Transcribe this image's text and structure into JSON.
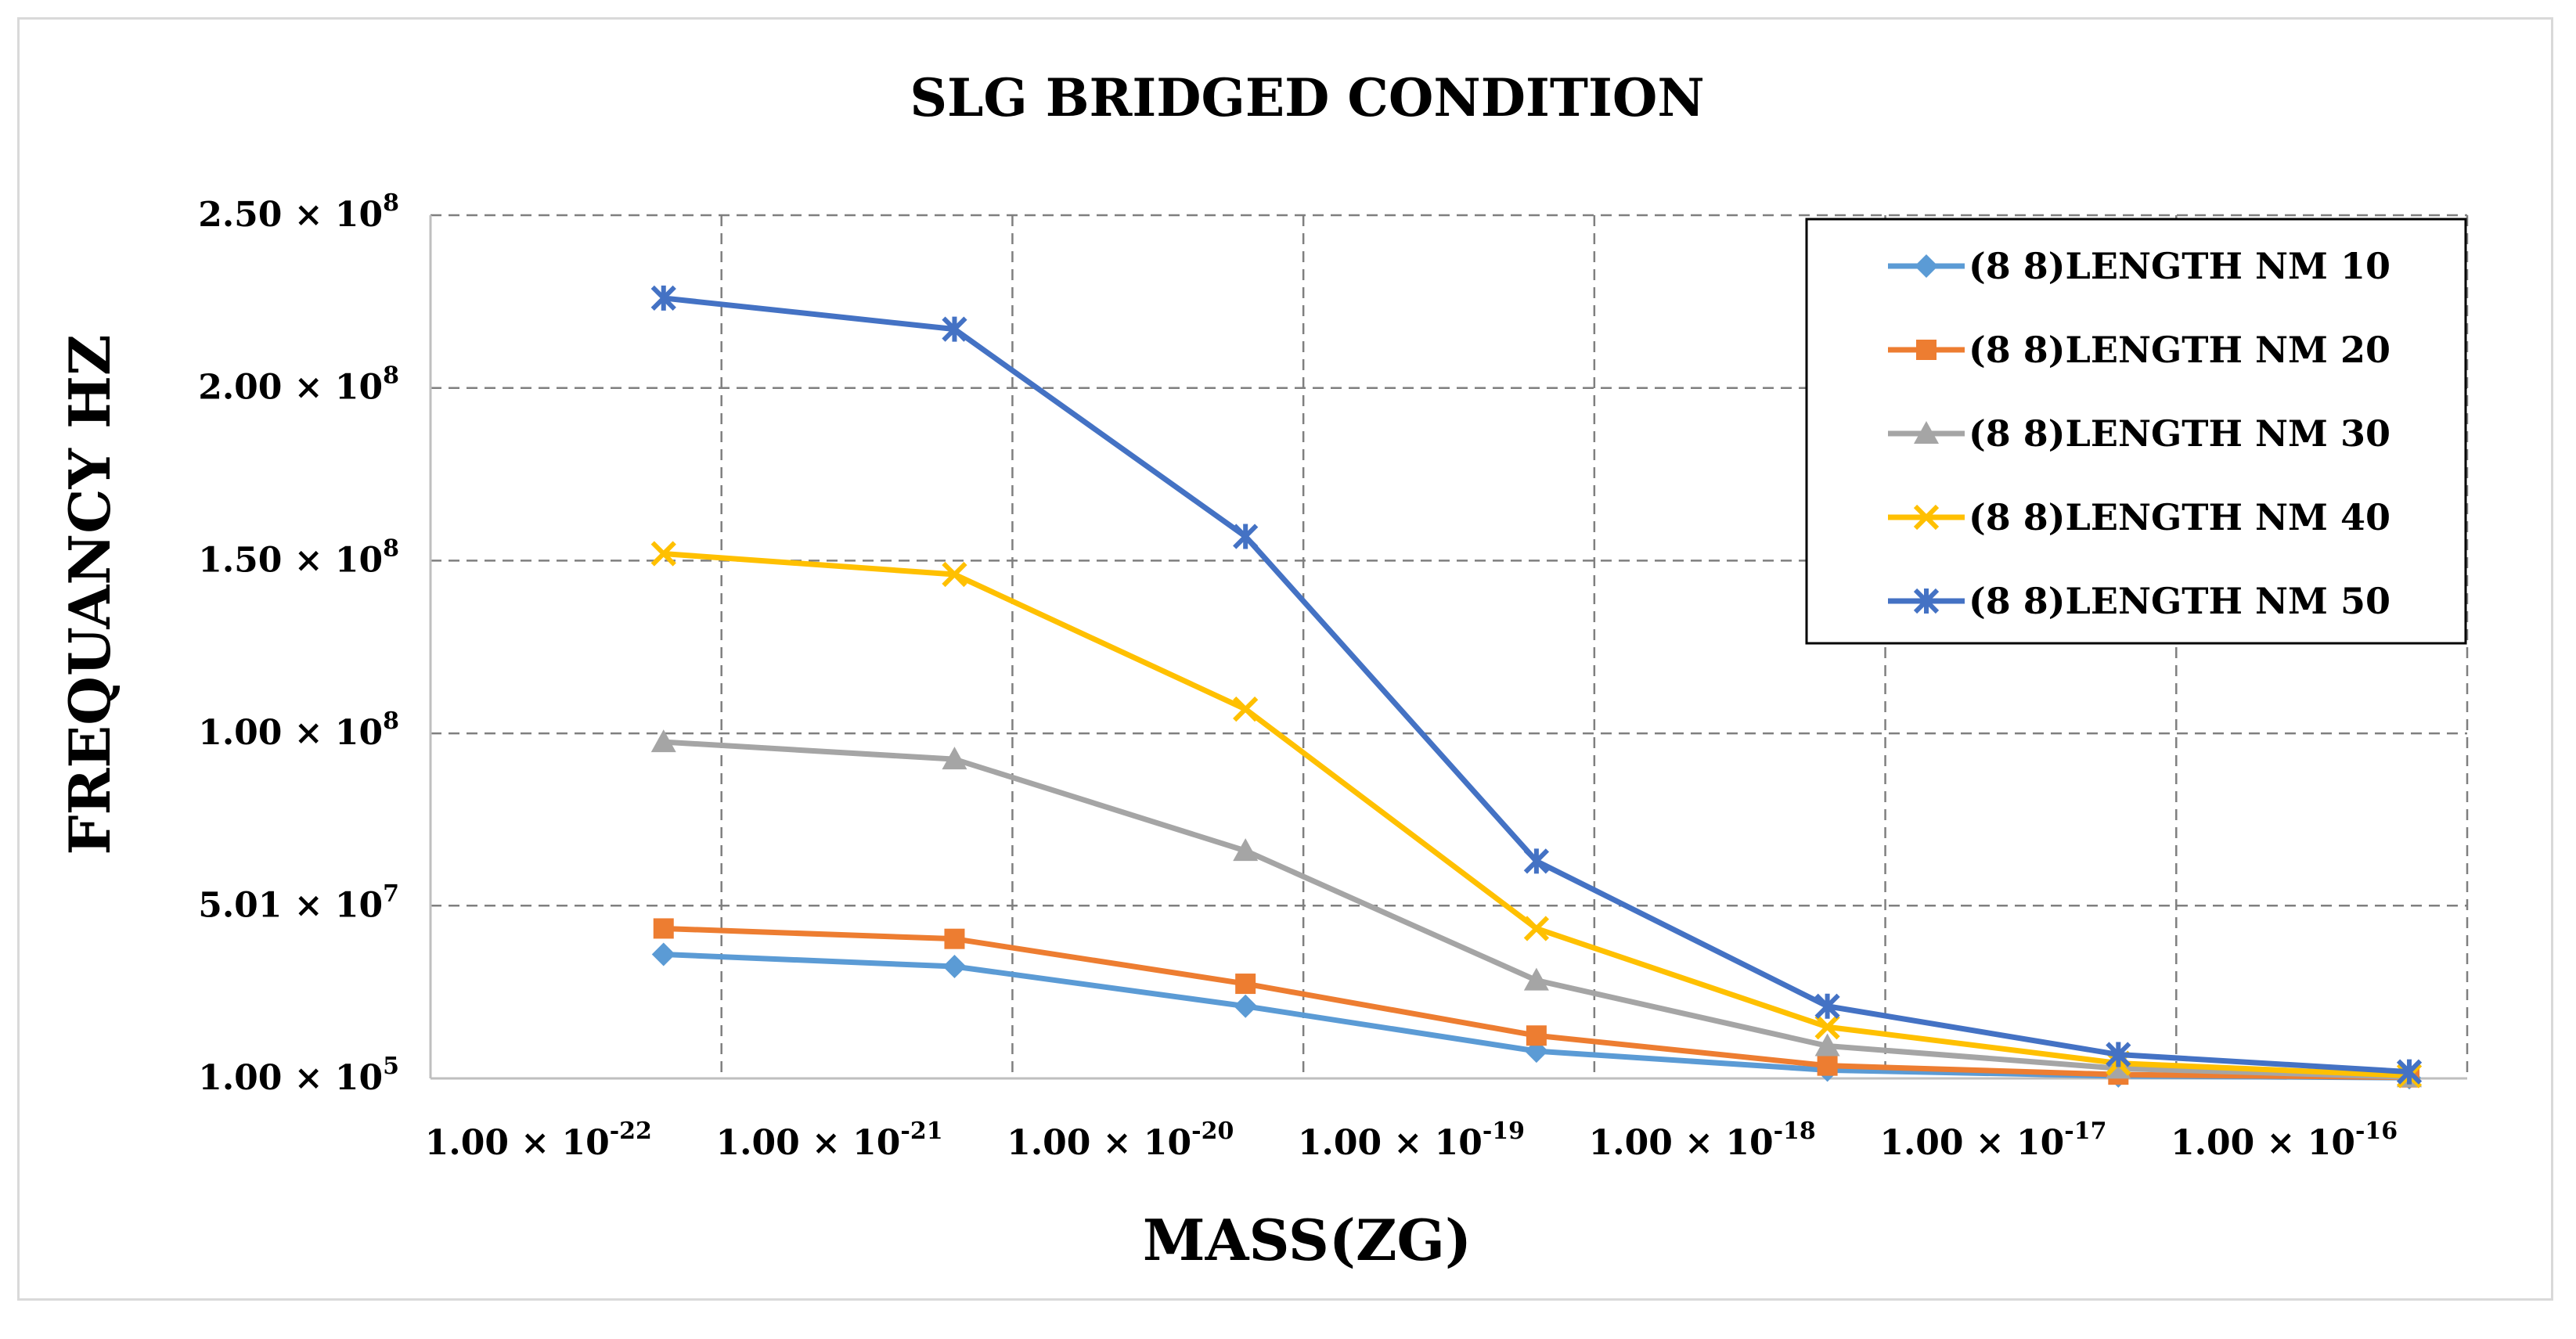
{
  "chart_data": {
    "type": "line",
    "title": "SLG BRIDGED CONDITION",
    "xlabel": "MASS(ZG)",
    "ylabel": "FREQUANCY HZ",
    "x_scale": "log",
    "x": [
      2e-22,
      2e-21,
      2e-20,
      2e-19,
      2e-18,
      2e-17,
      2e-16
    ],
    "xlim_log10": [
      -22.5,
      -15.5
    ],
    "x_ticks": [
      {
        "base": "1.00 × 10",
        "exp": "-22",
        "log10": -22
      },
      {
        "base": "1.00 × 10",
        "exp": "-21",
        "log10": -21
      },
      {
        "base": "1.00 × 10",
        "exp": "-20",
        "log10": -20
      },
      {
        "base": "1.00 × 10",
        "exp": "-19",
        "log10": -19
      },
      {
        "base": "1.00 × 10",
        "exp": "-18",
        "log10": -18
      },
      {
        "base": "1.00 × 10",
        "exp": "-17",
        "log10": -17
      },
      {
        "base": "1.00 × 10",
        "exp": "-16",
        "log10": -16
      }
    ],
    "ylim": [
      100000,
      250000000
    ],
    "y_ticks": [
      {
        "base": "1.00 × 10",
        "exp": "5",
        "value": 100000
      },
      {
        "base": "5.01 × 10",
        "exp": "7",
        "value": 50100000
      },
      {
        "base": "1.00 × 10",
        "exp": "8",
        "value": 100000000
      },
      {
        "base": "1.50 × 10",
        "exp": "8",
        "value": 150000000
      },
      {
        "base": "2.00 × 10",
        "exp": "8",
        "value": 200000000
      },
      {
        "base": "2.50 × 10",
        "exp": "8",
        "value": 250000000
      }
    ],
    "grid": true,
    "legend_position": "top-right",
    "series": [
      {
        "name": "(8 8)LENGTH NM 10",
        "color": "#5b9bd5",
        "marker": "diamond",
        "values": [
          36000000,
          32500000,
          21000000,
          8000000,
          2500000,
          800000,
          300000
        ]
      },
      {
        "name": "(8 8)LENGTH NM 20",
        "color": "#ed7d31",
        "marker": "square",
        "values": [
          43500000,
          40500000,
          27500000,
          12500000,
          3800000,
          1200000,
          400000
        ]
      },
      {
        "name": "(8 8)LENGTH NM 30",
        "color": "#a5a5a5",
        "marker": "triangle",
        "values": [
          97500000,
          92500000,
          66000000,
          28500000,
          9500000,
          3000000,
          500000
        ]
      },
      {
        "name": "(8 8)LENGTH NM 40",
        "color": "#ffc000",
        "marker": "x",
        "values": [
          152000000,
          146000000,
          107000000,
          43500000,
          15000000,
          4500000,
          900000
        ]
      },
      {
        "name": "(8 8)LENGTH NM 50",
        "color": "#4472c4",
        "marker": "star",
        "values": [
          226000000,
          217000000,
          157000000,
          63000000,
          21000000,
          7000000,
          2000000
        ]
      }
    ]
  }
}
